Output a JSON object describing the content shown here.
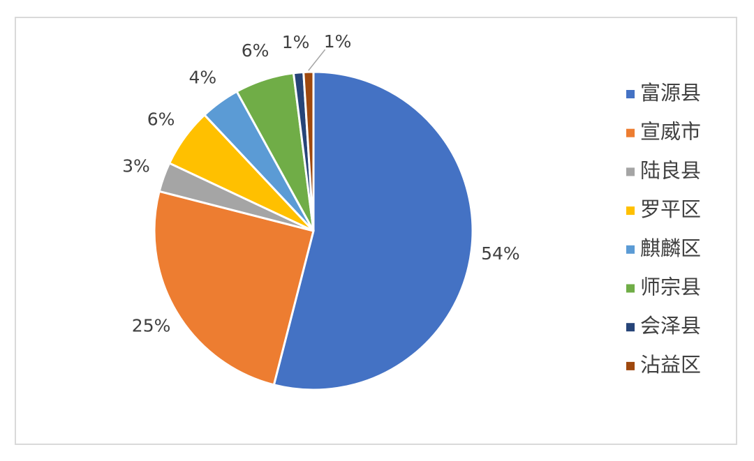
{
  "chart_data": {
    "type": "pie",
    "categories": [
      "富源县",
      "宣威市",
      "陆良县",
      "罗平区",
      "麒麟区",
      "师宗县",
      "会泽县",
      "沾益区"
    ],
    "values": [
      54,
      25,
      3,
      6,
      4,
      6,
      1,
      1
    ],
    "value_labels": [
      "54%",
      "25%",
      "3%",
      "6%",
      "4%",
      "6%",
      "1%",
      "1%"
    ],
    "colors": [
      "#4472c4",
      "#ed7d31",
      "#a5a5a5",
      "#ffc000",
      "#5b9bd5",
      "#70ad47",
      "#264478",
      "#9e480e"
    ],
    "legend": "right"
  }
}
